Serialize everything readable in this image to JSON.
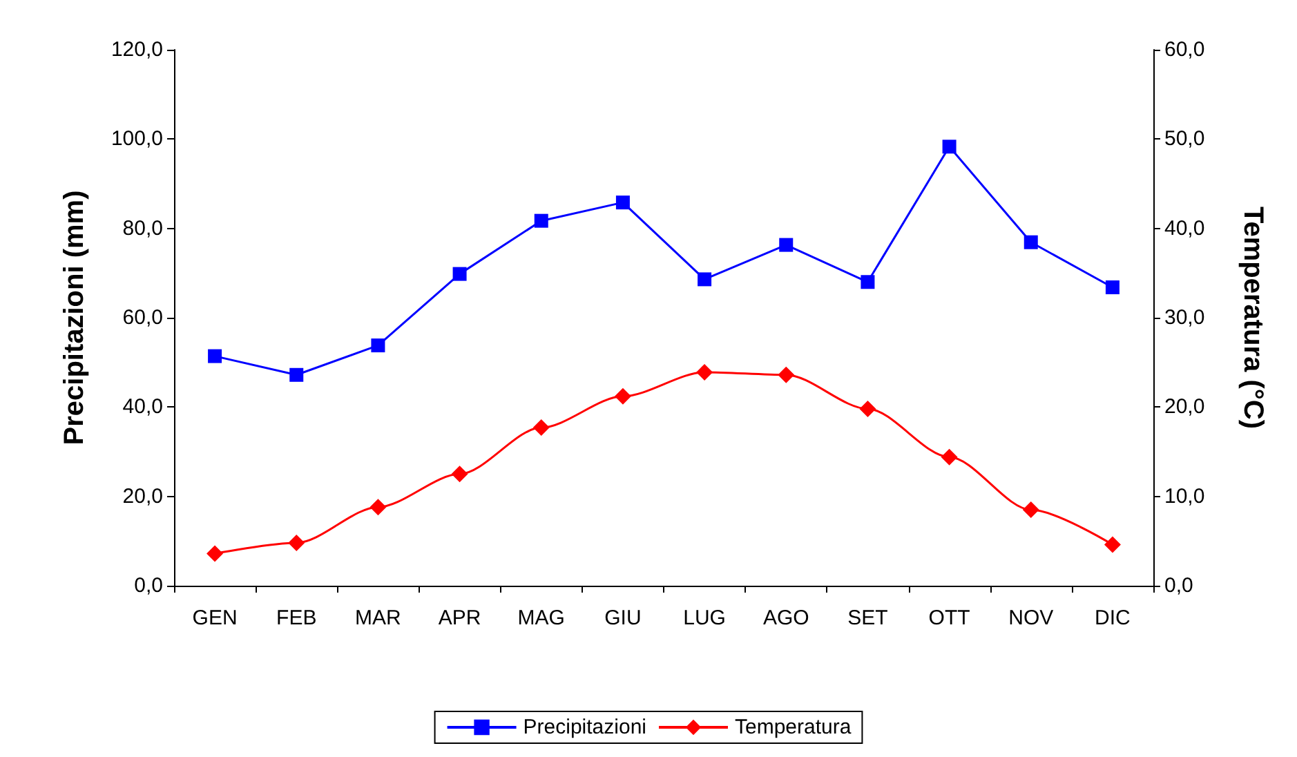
{
  "chart_data": {
    "type": "line",
    "categories": [
      "GEN",
      "FEB",
      "MAR",
      "APR",
      "MAG",
      "GIU",
      "LUG",
      "AGO",
      "SET",
      "OTT",
      "NOV",
      "DIC"
    ],
    "ylabel": "Precipitazioni (mm)",
    "y2label": "Temperatura (°C)",
    "ylim": [
      0,
      120
    ],
    "yticks": [
      {
        "value": 0,
        "label": "0,0"
      },
      {
        "value": 20,
        "label": "20,0"
      },
      {
        "value": 40,
        "label": "40,0"
      },
      {
        "value": 60,
        "label": "60,0"
      },
      {
        "value": 80,
        "label": "80,0"
      },
      {
        "value": 100,
        "label": "100,0"
      },
      {
        "value": 120,
        "label": "120,0"
      }
    ],
    "y2lim": [
      0,
      60
    ],
    "y2ticks": [
      {
        "value": 0,
        "label": "0,0"
      },
      {
        "value": 10,
        "label": "10,0"
      },
      {
        "value": 20,
        "label": "20,0"
      },
      {
        "value": 30,
        "label": "30,0"
      },
      {
        "value": 40,
        "label": "40,0"
      },
      {
        "value": 50,
        "label": "50,0"
      },
      {
        "value": 60,
        "label": "60,0"
      }
    ],
    "series": [
      {
        "name": "Precipitazioni",
        "color": "#0000ff",
        "marker": "square",
        "values": [
          51.4,
          47.2,
          53.8,
          69.8,
          81.7,
          85.8,
          68.6,
          76.3,
          68.0,
          98.3,
          76.9,
          66.8
        ]
      },
      {
        "name": "Temperatura",
        "color": "#ff0000",
        "marker": "diamond",
        "axis": "y2",
        "values": [
          3.6,
          4.8,
          8.8,
          12.5,
          17.7,
          21.2,
          23.9,
          23.6,
          19.8,
          14.4,
          8.5,
          4.6
        ]
      }
    ],
    "grid": false,
    "legend": "bottom"
  }
}
